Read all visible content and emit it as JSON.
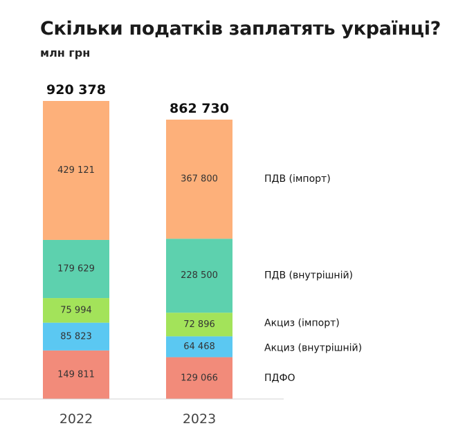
{
  "title": "Скільки податків заплатять українці?",
  "subtitle": "млн грн",
  "chart_data": {
    "type": "bar",
    "stacked": true,
    "title": "Скільки податків заплатять українці?",
    "subtitle": "млн грн",
    "categories": [
      "2022",
      "2023"
    ],
    "totals": [
      "920 378",
      "862 730"
    ],
    "total_values": [
      920378,
      862730
    ],
    "series": [
      {
        "name": "ПДФО",
        "color": "#f28b7a",
        "values": [
          149811,
          129066
        ],
        "labels": [
          "149 811",
          "129 066"
        ]
      },
      {
        "name": "Акциз (внутрішній)",
        "color": "#5bc8f2",
        "values": [
          85823,
          64468
        ],
        "labels": [
          "85 823",
          "64 468"
        ]
      },
      {
        "name": "Акциз (імпорт)",
        "color": "#a3e35a",
        "values": [
          75994,
          72896
        ],
        "labels": [
          "75 994",
          "72 896"
        ]
      },
      {
        "name": "ПДВ (внутрішній)",
        "color": "#5dd1ae",
        "values": [
          179629,
          228500
        ],
        "labels": [
          "179 629",
          "228 500"
        ]
      },
      {
        "name": "ПДВ (імпорт)",
        "color": "#fdb07a",
        "values": [
          429121,
          367800
        ],
        "labels": [
          "429 121",
          "367 800"
        ]
      }
    ],
    "legend_placement": "right of last bar",
    "grid": false
  }
}
